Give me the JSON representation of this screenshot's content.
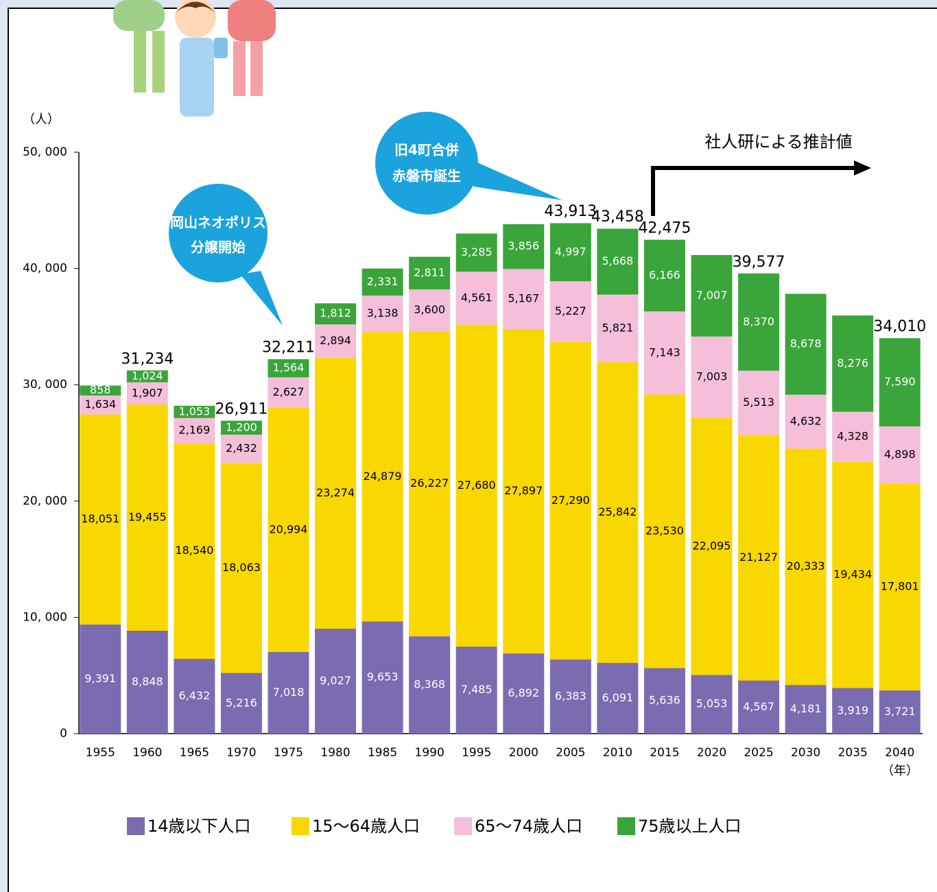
{
  "chart_data": {
    "type": "stacked_bar",
    "y_unit_label": "（人）",
    "x_unit_label": "（年）",
    "categories": [
      "1955",
      "1960",
      "1965",
      "1970",
      "1975",
      "1980",
      "1985",
      "1990",
      "1995",
      "2000",
      "2005",
      "2010",
      "2015",
      "2020",
      "2025",
      "2030",
      "2035",
      "2040"
    ],
    "ylim": [
      0,
      50000
    ],
    "yticks": [
      0,
      {
        "value": 10000,
        "label": "10, 000"
      },
      {
        "value": 20000,
        "label": "20, 000"
      },
      {
        "value": 30000,
        "label": "30, 000"
      },
      {
        "value": 40000,
        "label": "40, 000"
      },
      {
        "value": 50000,
        "label": "50, 000"
      }
    ],
    "series": [
      {
        "name": "14歳以下人口",
        "color": "#7b6bb1",
        "values": [
          9391,
          8848,
          6432,
          5216,
          7018,
          9027,
          9653,
          8368,
          7485,
          6892,
          6383,
          6091,
          5636,
          5053,
          4567,
          4181,
          3919,
          3721
        ],
        "value_labels": [
          "9,391",
          "8,848",
          "6,432",
          "5,216",
          "7,018",
          "9,027",
          "9,653",
          "8,368",
          "7,485",
          "6,892",
          "6,383",
          "6,091",
          "5,636",
          "5,053",
          "4,567",
          "4,181",
          "3,919",
          "3,721"
        ]
      },
      {
        "name": "15～64歳人口",
        "color": "#f9d700",
        "values": [
          18051,
          19455,
          18540,
          18063,
          20994,
          23274,
          24879,
          26227,
          27680,
          27897,
          27290,
          25842,
          23530,
          22095,
          21127,
          20333,
          19434,
          17801
        ],
        "value_labels": [
          "18,051",
          "19,455",
          "18,540",
          "18,063",
          "20,994",
          "23,274",
          "24,879",
          "26,227",
          "27,680",
          "27,897",
          "27,290",
          "25,842",
          "23,530",
          "22,095",
          "21,127",
          "20,333",
          "19,434",
          "17,801"
        ]
      },
      {
        "name": "65～74歳人口",
        "color": "#f5bfd9",
        "values": [
          1634,
          1907,
          2169,
          2432,
          2627,
          2894,
          3138,
          3600,
          4561,
          5167,
          5227,
          5821,
          7143,
          7003,
          5513,
          4632,
          4328,
          4898
        ],
        "value_labels": [
          "1,634",
          "1,907",
          "2,169",
          "2,432",
          "2,627",
          "2,894",
          "3,138",
          "3,600",
          "4,561",
          "5,167",
          "5,227",
          "5,821",
          "7,143",
          "7,003",
          "5,513",
          "4,632",
          "4,328",
          "4,898"
        ]
      },
      {
        "name": "75歳以上人口",
        "color": "#3aa53a",
        "values": [
          858,
          1024,
          1053,
          1200,
          1564,
          1812,
          2331,
          2811,
          3285,
          3856,
          4997,
          5668,
          6166,
          7007,
          8370,
          8678,
          8276,
          7590
        ],
        "value_labels": [
          "858",
          "1,024",
          "1,053",
          "1,200",
          "1,564",
          "1,812",
          "2,331",
          "2,811",
          "3,285",
          "3,856",
          "4,997",
          "5,668",
          "6,166",
          "7,007",
          "8,370",
          "8,678",
          "8,276",
          "7,590"
        ]
      }
    ],
    "totals": {
      "values": [
        null,
        31234,
        null,
        26911,
        32211,
        null,
        null,
        null,
        null,
        null,
        43913,
        43458,
        42475,
        null,
        39577,
        null,
        null,
        34010
      ],
      "value_labels": [
        null,
        "31,234",
        null,
        "26,911",
        "32,211",
        null,
        null,
        null,
        null,
        null,
        "43,913",
        "43,458",
        "42,475",
        null,
        "39,577",
        null,
        null,
        "34,010"
      ]
    },
    "callouts": [
      {
        "lines": [
          "岡山ネオポリス",
          "分譲開始"
        ]
      },
      {
        "lines": [
          "旧4町合併",
          "赤磐市誕生"
        ]
      }
    ],
    "projection_label": "社人研による推計値"
  }
}
